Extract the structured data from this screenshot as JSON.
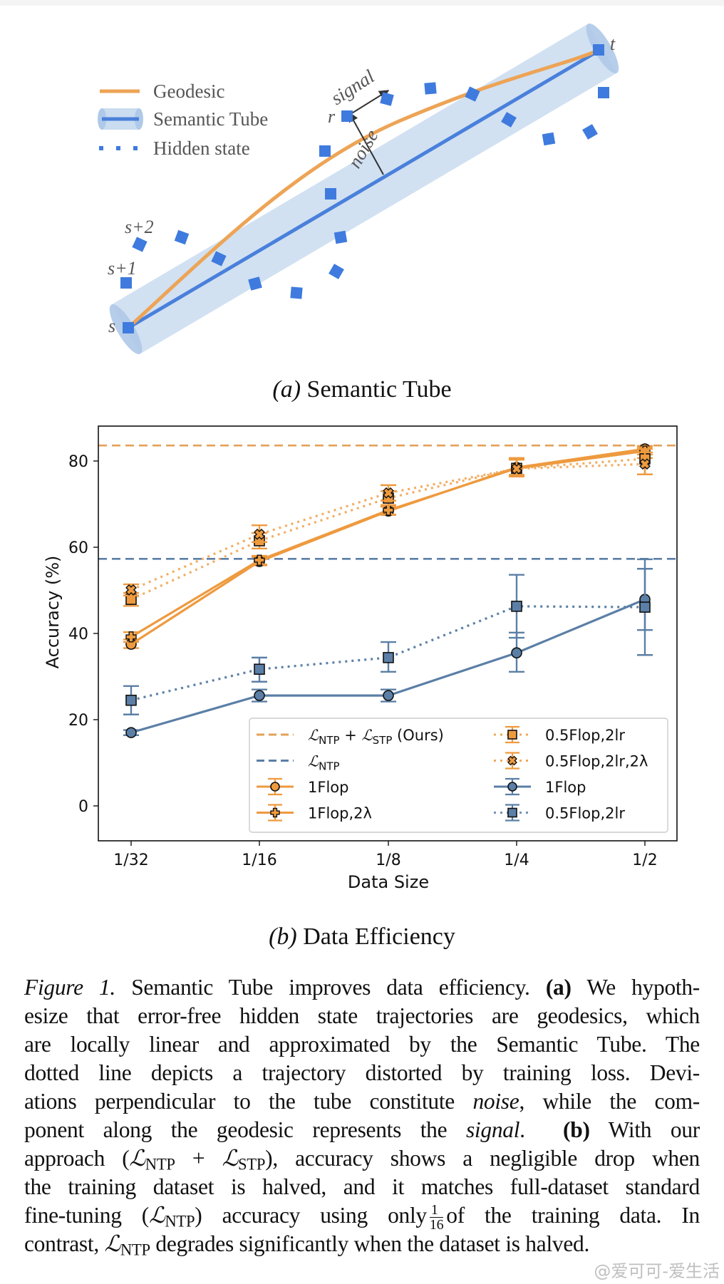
{
  "panel_a": {
    "legend": [
      {
        "label": "Geodesic",
        "kind": "geodesic"
      },
      {
        "label": "Semantic Tube",
        "kind": "tube"
      },
      {
        "label": "Hidden state",
        "kind": "hidden"
      }
    ],
    "labels": {
      "s": "s",
      "s1": "s+1",
      "s2": "s+2",
      "r": "r",
      "t": "t",
      "signal": "signal",
      "noise": "noise"
    },
    "colors": {
      "geodesic": "#EDA456",
      "tube_fill": "#C9DCF0",
      "tube_axis": "#4A80DB",
      "hidden": "#3F7BDE",
      "arrow": "#333333"
    },
    "caption_prefix": "(a)",
    "caption_text": "Semantic Tube"
  },
  "chart_data": {
    "type": "line",
    "title": "",
    "xlabel": "Data Size",
    "ylabel": "Accuracy (%)",
    "categories": [
      "1/32",
      "1/16",
      "1/8",
      "1/4",
      "1/2"
    ],
    "yticks": [
      0,
      20,
      40,
      60,
      80
    ],
    "ylim": [
      -7.5,
      88
    ],
    "grid": false,
    "legend_position": "lower-right",
    "legend_columns": 2,
    "reference_lines": [
      {
        "name": "L_NTP + L_STP (Ours)",
        "label_main": "ℒ",
        "label_sub": "NTP",
        "label_plus": " + ℒ",
        "label_sub2": "STP",
        "label_tail": " (Ours)",
        "value": 83.6,
        "color": "#E3A158",
        "style": "dashed"
      },
      {
        "name": "L_NTP",
        "label_main": "ℒ",
        "label_sub": "NTP",
        "label_plus": "",
        "label_sub2": "",
        "label_tail": "",
        "value": 57.3,
        "color": "#5B7FA6",
        "style": "dashed"
      }
    ],
    "series": [
      {
        "name": "1Flop",
        "group": "orange",
        "marker": "circle",
        "line": "solid",
        "color": "#EE9A3F",
        "values": [
          37.5,
          56.7,
          68.4,
          78.5,
          82.8
        ],
        "err_low": [
          36.6,
          55.8,
          67.5,
          76.4,
          81.5
        ],
        "err_high": [
          38.6,
          57.7,
          69.4,
          80.7,
          83.5
        ]
      },
      {
        "name": "1Flop,2λ",
        "group": "orange",
        "marker": "plus",
        "line": "solid",
        "color": "#EE9A3F",
        "values": [
          39.2,
          57.0,
          68.6,
          78.3,
          82.3
        ],
        "err_low": [
          38.0,
          56.0,
          67.6,
          76.8,
          80.7
        ],
        "err_high": [
          40.3,
          58.0,
          69.6,
          80.3,
          83.2
        ]
      },
      {
        "name": "0.5Flop,2lr",
        "group": "orange",
        "marker": "square",
        "line": "dotted",
        "color": "#EE9A3F",
        "values": [
          47.9,
          61.5,
          71.4,
          78.3,
          80.5
        ],
        "err_low": [
          46.4,
          59.7,
          69.8,
          76.4,
          76.9
        ],
        "err_high": [
          49.4,
          63.3,
          73.0,
          80.5,
          82.8
        ]
      },
      {
        "name": "0.5Flop,2lr,2λ",
        "group": "orange",
        "marker": "x",
        "line": "dotted",
        "color": "#EE9A3F",
        "values": [
          50.1,
          63.0,
          72.6,
          78.2,
          79.3
        ],
        "err_low": [
          48.8,
          61.2,
          70.8,
          76.6,
          76.9
        ],
        "err_high": [
          51.4,
          65.1,
          74.4,
          80.7,
          82.0
        ]
      },
      {
        "name": "1Flop",
        "group": "blue",
        "marker": "circle",
        "line": "solid",
        "color": "#5B7FA6",
        "values": [
          17.0,
          25.6,
          25.6,
          35.5,
          47.9
        ],
        "err_low": [
          16.4,
          24.2,
          24.2,
          31.1,
          40.8
        ],
        "err_high": [
          17.6,
          27.0,
          27.0,
          40.2,
          57.2
        ]
      },
      {
        "name": "0.5Flop,2lr",
        "group": "blue",
        "marker": "square",
        "line": "dotted",
        "color": "#5B7FA6",
        "values": [
          24.5,
          31.7,
          34.4,
          46.3,
          46.1
        ],
        "err_low": [
          21.2,
          28.8,
          31.1,
          39.0,
          35.0
        ],
        "err_high": [
          27.8,
          34.4,
          38.0,
          53.6,
          55.0
        ]
      }
    ],
    "legend_entries": [
      {
        "ref": "ours",
        "text": "ℒNTP + ℒSTP (Ours)"
      },
      {
        "ref": "ntp",
        "text": "ℒNTP"
      },
      {
        "series": 0,
        "text": "1Flop"
      },
      {
        "series": 1,
        "text": "1Flop,2λ"
      },
      {
        "series": 2,
        "text": "0.5Flop,2lr"
      },
      {
        "series": 3,
        "text": "0.5Flop,2lr,2λ"
      },
      {
        "series": 4,
        "text": "1Flop"
      },
      {
        "series": 5,
        "text": "0.5Flop,2lr"
      }
    ]
  },
  "panel_b": {
    "caption_prefix": "(b)",
    "caption_text": "Data Efficiency"
  },
  "figure_caption": {
    "label": "Figure 1.",
    "lines": [
      "Semantic Tube improves data efficiency. ",
      "esize that error-free hidden state trajectories are geodesics, which",
      "are locally linear and approximated by the Semantic Tube.  The",
      "dotted line depicts a trajectory distorted by training loss.  Devi-",
      "ations perpendicular to the tube constitute ",
      "ponent along the geodesic represents the ",
      "approach (",
      "the training dataset is halved, and it matches full-dataset standard",
      "fine-tuning (",
      "contrast, "
    ],
    "parts": {
      "l1_bold": "(a)",
      "l1_tail": " We hypoth-",
      "l5_italic": "noise",
      "l5_tail": ", while the com-",
      "l6_italic": "signal",
      "l6_mid": ".  ",
      "l6_bold": "(b)",
      "l6_tail": " With our",
      "l7_tail": "), accuracy shows a negligible drop when",
      "l9_mid": ") accuracy using only",
      "frac_num": "1",
      "frac_den": "16",
      "l9_tail": "of the training data.  In",
      "l10_tail": " degrades significantly when the dataset is halved.",
      "L": "ℒ",
      "NTP": "NTP",
      "STP": "STP",
      "plus": " + "
    }
  },
  "watermark": "@爱可可-爱生活"
}
